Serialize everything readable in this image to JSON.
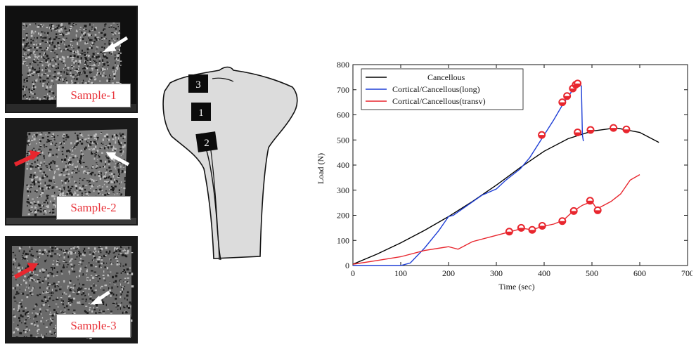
{
  "samples": [
    {
      "label": "Sample-1"
    },
    {
      "label": "Sample-2"
    },
    {
      "label": "Sample-3"
    }
  ],
  "diagram": {
    "region_labels": [
      "3",
      "1",
      "2"
    ]
  },
  "colors": {
    "arrow_white": "#ffffff",
    "arrow_red": "#e8262e",
    "bone_fill": "#dcdcdc",
    "label_red": "#e8333a"
  },
  "chart_data": {
    "type": "line",
    "xlabel": "Time (sec)",
    "ylabel": "Load (N)",
    "xlim": [
      0,
      700
    ],
    "ylim": [
      0,
      800
    ],
    "xticks": [
      0,
      100,
      200,
      300,
      400,
      500,
      600,
      700
    ],
    "yticks": [
      0,
      100,
      200,
      300,
      400,
      500,
      600,
      700,
      800
    ],
    "legend_position": "top-left",
    "grid": false,
    "series": [
      {
        "name": "Cancellous",
        "color": "#000000",
        "x": [
          0,
          50,
          100,
          150,
          200,
          250,
          300,
          350,
          400,
          450,
          500,
          550,
          600,
          640
        ],
        "y": [
          5,
          45,
          90,
          140,
          195,
          255,
          320,
          390,
          455,
          505,
          535,
          548,
          530,
          490
        ]
      },
      {
        "name": "Cortical/Cancellous(long)",
        "color": "#1f3fd6",
        "x": [
          0,
          100,
          120,
          150,
          180,
          200,
          210,
          240,
          270,
          300,
          320,
          350,
          370,
          400,
          420,
          440,
          460,
          470,
          478,
          480,
          482
        ],
        "y": [
          0,
          0,
          10,
          70,
          140,
          195,
          200,
          240,
          280,
          305,
          340,
          385,
          430,
          520,
          580,
          645,
          700,
          725,
          715,
          520,
          495
        ],
        "markers_x": [
          395,
          438,
          448,
          460,
          466,
          470
        ],
        "markers_y": [
          520,
          650,
          675,
          705,
          720,
          725
        ]
      },
      {
        "name": "Cortical/Cancellous(transv)",
        "color": "#e8262e",
        "x": [
          0,
          50,
          100,
          150,
          200,
          210,
          220,
          250,
          300,
          330,
          355,
          375,
          395,
          420,
          440,
          460,
          480,
          500,
          510,
          520,
          540,
          560,
          580,
          600
        ],
        "y": [
          5,
          20,
          35,
          60,
          75,
          70,
          65,
          95,
          120,
          135,
          148,
          142,
          155,
          165,
          180,
          215,
          240,
          255,
          225,
          235,
          255,
          285,
          340,
          362
        ],
        "markers_x": [
          327,
          352,
          375,
          396,
          438,
          462,
          496,
          512,
          470,
          497,
          545,
          572
        ],
        "markers_y": [
          135,
          150,
          142,
          158,
          177,
          217,
          258,
          220,
          530,
          540,
          548,
          542
        ]
      }
    ]
  }
}
